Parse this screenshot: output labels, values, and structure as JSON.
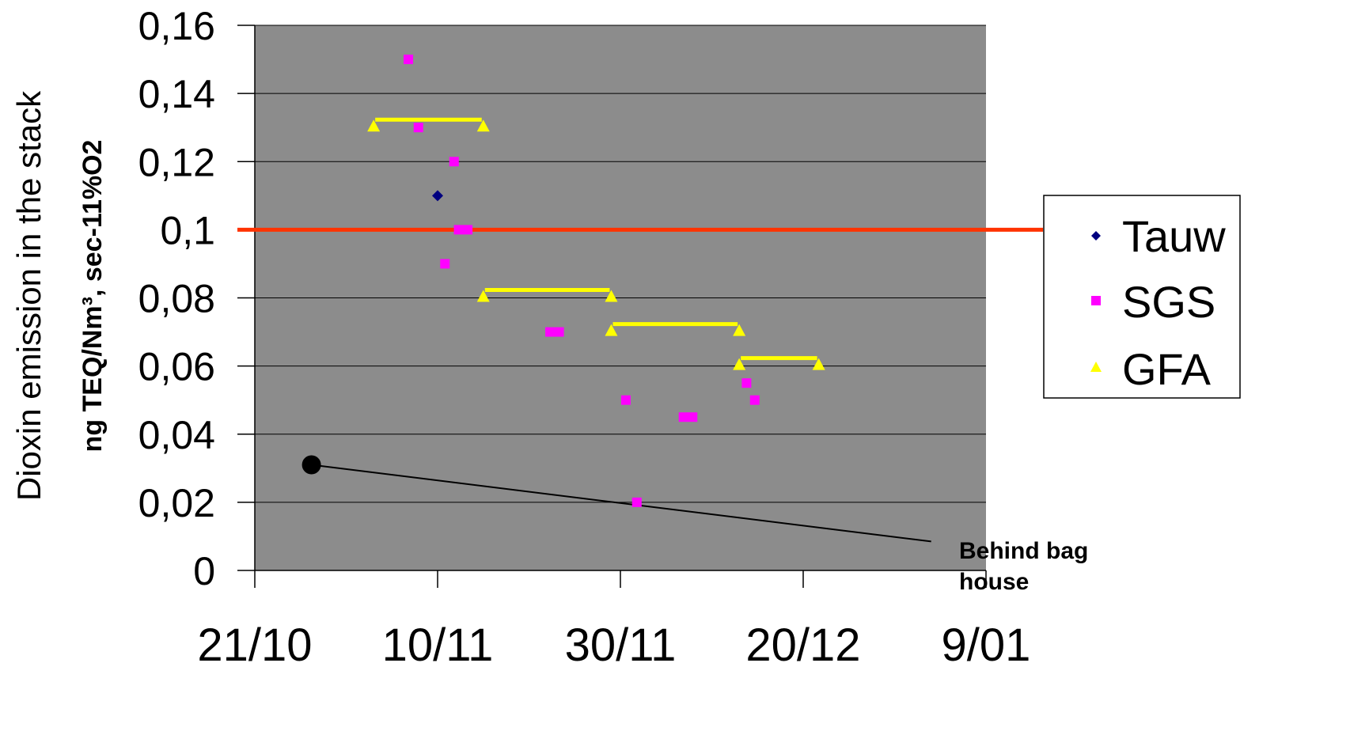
{
  "chart_data": {
    "type": "scatter",
    "title": "",
    "ylabel_line1": "Dioxin emission in the stack",
    "ylabel_line2": "ng TEQ/Nm³, sec-11%O2",
    "ylim": [
      0,
      0.16
    ],
    "y_ticks": [
      {
        "value": 0,
        "label": "0"
      },
      {
        "value": 0.02,
        "label": "0,02"
      },
      {
        "value": 0.04,
        "label": "0,04"
      },
      {
        "value": 0.06,
        "label": "0,06"
      },
      {
        "value": 0.08,
        "label": "0,08"
      },
      {
        "value": 0.1,
        "label": "0,1"
      },
      {
        "value": 0.12,
        "label": "0,12"
      },
      {
        "value": 0.14,
        "label": "0,14"
      },
      {
        "value": 0.16,
        "label": "0,16"
      }
    ],
    "x_ticks": [
      {
        "value": 0,
        "label": "21/10"
      },
      {
        "value": 20,
        "label": "10/11"
      },
      {
        "value": 40,
        "label": "30/11"
      },
      {
        "value": 60,
        "label": "20/12"
      },
      {
        "value": 80,
        "label": "9/01"
      }
    ],
    "xlim": [
      0,
      80
    ],
    "grid": true,
    "legend_position": "right",
    "colors": {
      "plot_background": "#8c8c8c",
      "limit_line": "#ff3300",
      "tauw": "#000080",
      "sgs": "#ff00ff",
      "gfa": "#ffff00",
      "behind_bag_house": "#000000"
    },
    "limit_line_value": 0.1,
    "series": [
      {
        "name": "Tauw",
        "marker": "diamond",
        "points": [
          {
            "x": 20,
            "y": 0.11
          }
        ]
      },
      {
        "name": "SGS",
        "marker": "square",
        "points": [
          {
            "x": 16.8,
            "y": 0.15
          },
          {
            "x": 17.9,
            "y": 0.13
          },
          {
            "x": 21.8,
            "y": 0.12
          },
          {
            "x": 22.3,
            "y": 0.1
          },
          {
            "x": 20.8,
            "y": 0.09
          },
          {
            "x": 23.3,
            "y": 0.1
          },
          {
            "x": 32.3,
            "y": 0.07
          },
          {
            "x": 33.3,
            "y": 0.07
          },
          {
            "x": 40.6,
            "y": 0.05
          },
          {
            "x": 41.8,
            "y": 0.02
          },
          {
            "x": 46.9,
            "y": 0.045
          },
          {
            "x": 47.9,
            "y": 0.045
          },
          {
            "x": 53.8,
            "y": 0.055
          },
          {
            "x": 54.7,
            "y": 0.05
          }
        ]
      },
      {
        "name": "GFA",
        "marker": "triangle",
        "points": [
          {
            "x": 13.0,
            "y": 0.13
          },
          {
            "x": 25.0,
            "y": 0.13
          },
          {
            "x": 25.0,
            "y": 0.08
          },
          {
            "x": 39.0,
            "y": 0.08
          },
          {
            "x": 39.0,
            "y": 0.07
          },
          {
            "x": 53.0,
            "y": 0.07
          },
          {
            "x": 53.0,
            "y": 0.06
          },
          {
            "x": 61.7,
            "y": 0.06
          }
        ],
        "ranges": [
          {
            "x1": 13.0,
            "x2": 25.0,
            "y": 0.13
          },
          {
            "x1": 25.0,
            "x2": 39.0,
            "y": 0.08
          },
          {
            "x1": 39.0,
            "x2": 53.0,
            "y": 0.07
          },
          {
            "x1": 53.0,
            "x2": 61.7,
            "y": 0.06
          }
        ]
      }
    ],
    "annotation": {
      "text_line1": "Behind bag",
      "text_line2": "house",
      "point": {
        "x": 6.2,
        "y": 0.031
      },
      "line_end": {
        "x": 74,
        "y": 0.0085
      }
    }
  }
}
